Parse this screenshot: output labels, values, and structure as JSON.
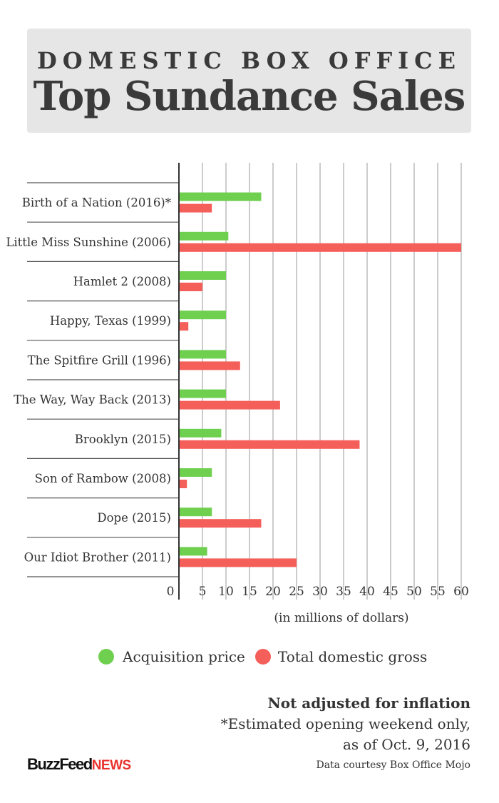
{
  "header": {
    "kicker": "DOMESTIC BOX OFFICE",
    "title": "Top Sundance Sales"
  },
  "chart_data": {
    "type": "bar",
    "orientation": "horizontal",
    "categories": [
      "Birth of a Nation (2016)*",
      "Little Miss Sunshine (2006)",
      "Hamlet 2 (2008)",
      "Happy, Texas (1999)",
      "The Spitfire Grill (1996)",
      "The Way, Way Back (2013)",
      "Brooklyn (2015)",
      "Son of Rambow (2008)",
      "Dope (2015)",
      "Our Idiot Brother (2011)"
    ],
    "series": [
      {
        "name": "Acquisition price",
        "color": "#6fcf4f",
        "values": [
          17.5,
          10.5,
          10,
          10,
          10,
          10,
          9,
          7,
          7,
          6
        ]
      },
      {
        "name": "Total domestic gross",
        "color": "#f55f5a",
        "values": [
          7,
          60,
          5,
          2,
          13,
          21.5,
          38.4,
          1.7,
          17.5,
          25
        ]
      }
    ],
    "xticks": [
      0,
      5,
      10,
      15,
      20,
      25,
      30,
      35,
      40,
      45,
      50,
      55,
      60
    ],
    "xlim": [
      0,
      60
    ],
    "xlabel": "(in millions of dollars)",
    "grid": true,
    "legend_position": "bottom"
  },
  "notes": {
    "bold": "Not adjusted for inflation",
    "line1": "*Estimated opening weekend only,",
    "line2": "as of Oct. 9, 2016",
    "credit": "Data courtesy Box Office Mojo"
  },
  "logo": {
    "main": "BuzzFeed",
    "news": "NEWS"
  }
}
